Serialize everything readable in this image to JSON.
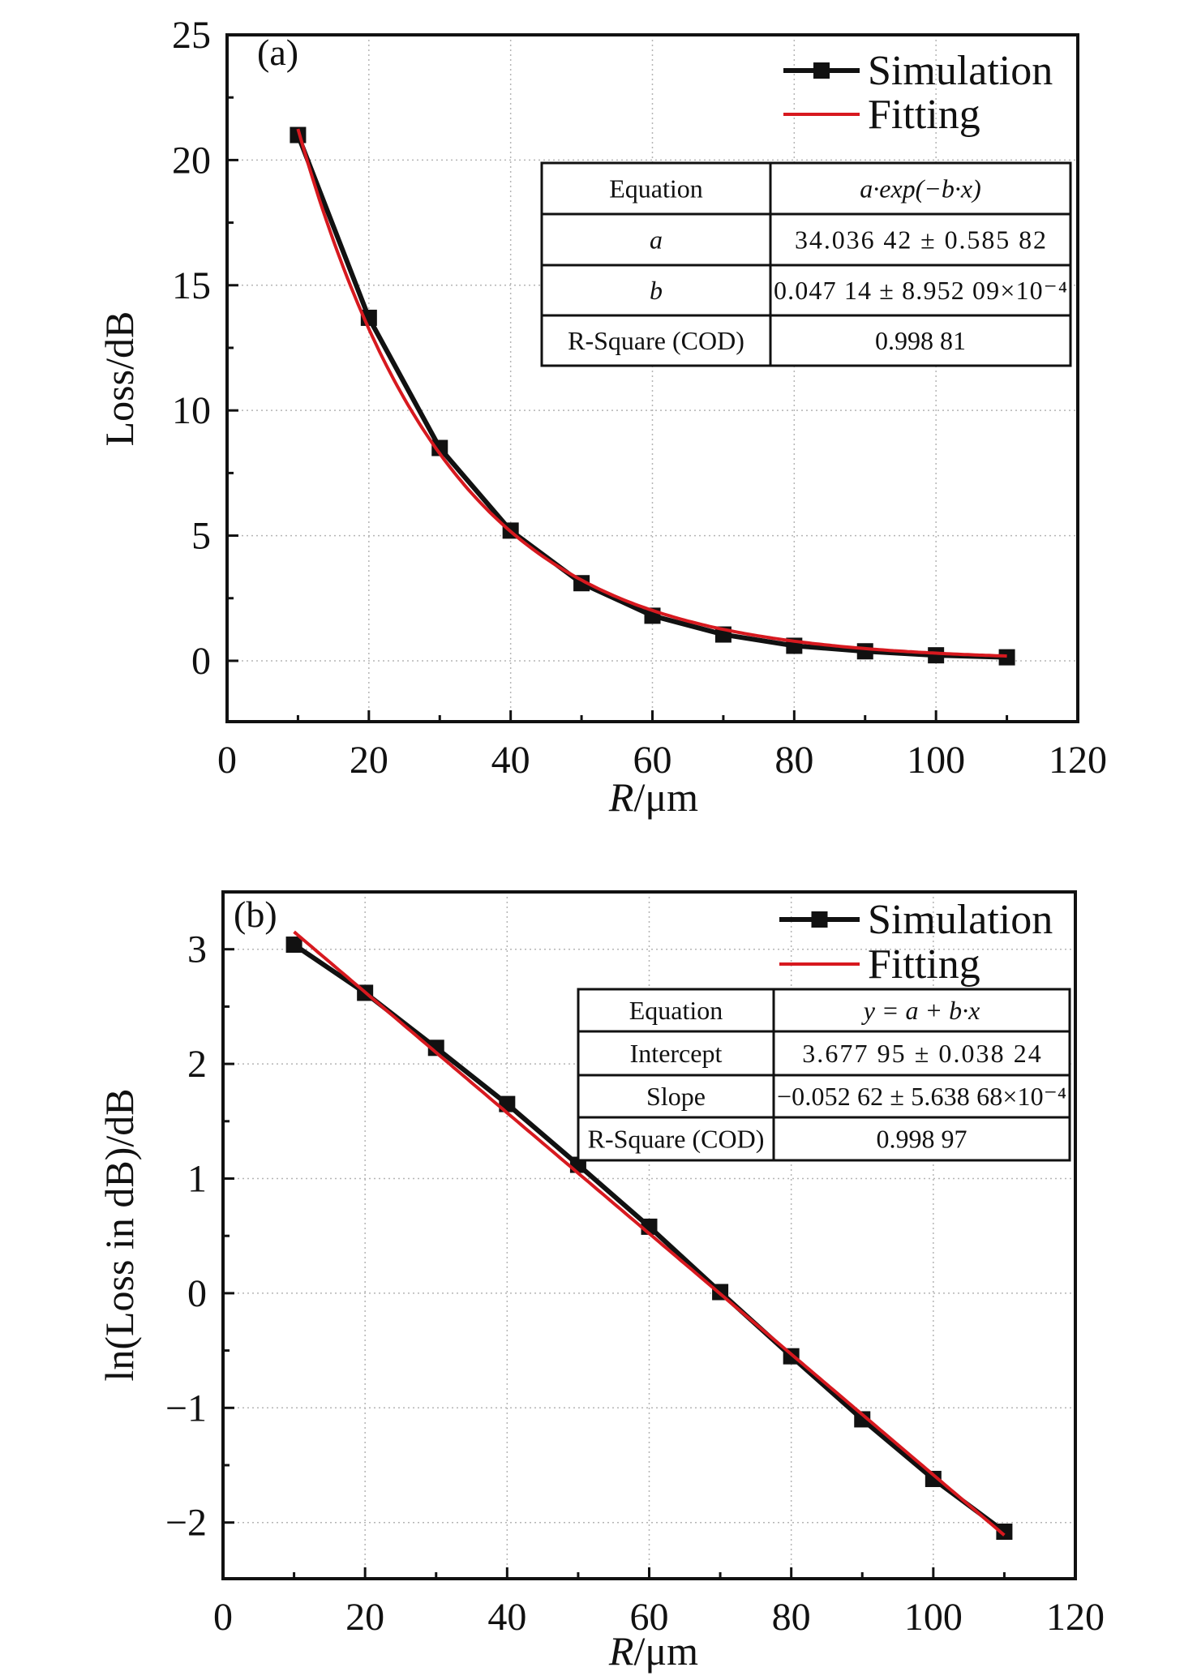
{
  "colors": {
    "simulation": "#111111",
    "fitting": "#d7191f",
    "grid": "#b5b5b5"
  },
  "chart_data": [
    {
      "type": "line",
      "panel_label": "(a)",
      "xlabel_italic": "R",
      "xlabel_unit": "/μm",
      "ylabel": "Loss/dB",
      "xlim": [
        0,
        120
      ],
      "ylim": [
        -2.43,
        25
      ],
      "xticks": [
        "0",
        "20",
        "40",
        "60",
        "80",
        "100",
        "120"
      ],
      "xtick_values": [
        0,
        20,
        40,
        60,
        80,
        100,
        120
      ],
      "yticks": [
        "0",
        "5",
        "10",
        "15",
        "20",
        "25"
      ],
      "ytick_values": [
        0,
        5,
        10,
        15,
        20,
        25
      ],
      "grid": true,
      "legend": {
        "position": "top-right",
        "entries": [
          "Simulation",
          "Fitting"
        ]
      },
      "x": [
        10,
        20,
        30,
        40,
        50,
        60,
        70,
        80,
        90,
        100,
        110
      ],
      "series": [
        {
          "name": "Simulation",
          "values": [
            21.0,
            13.7,
            8.5,
            5.2,
            3.1,
            1.8,
            1.05,
            0.6,
            0.38,
            0.22,
            0.14
          ]
        },
        {
          "name": "Fitting",
          "model": "exp",
          "a": 34.03642,
          "b": 0.04714,
          "x_range": [
            10,
            110
          ]
        }
      ],
      "table": [
        [
          "Equation",
          "a·exp(−b·x)"
        ],
        [
          "a",
          "34.036 42 ± 0.585 82"
        ],
        [
          "b",
          "0.047 14 ± 8.952 09×10⁻⁴"
        ],
        [
          "R-Square (COD)",
          "0.998 81"
        ]
      ]
    },
    {
      "type": "line",
      "panel_label": "(b)",
      "xlabel_italic": "R",
      "xlabel_unit": "/μm",
      "ylabel": "ln(Loss in dB)/dB",
      "xlim": [
        0,
        120
      ],
      "ylim": [
        -2.49,
        3.5
      ],
      "xticks": [
        "0",
        "20",
        "40",
        "60",
        "80",
        "100",
        "120"
      ],
      "xtick_values": [
        0,
        20,
        40,
        60,
        80,
        100,
        120
      ],
      "yticks": [
        "−2",
        "−1",
        "0",
        "1",
        "2",
        "3"
      ],
      "ytick_values": [
        -2,
        -1,
        0,
        1,
        2,
        3
      ],
      "grid": true,
      "legend": {
        "position": "top-right",
        "entries": [
          "Simulation",
          "Fitting"
        ]
      },
      "x": [
        10,
        20,
        30,
        40,
        50,
        60,
        70,
        80,
        90,
        100,
        110
      ],
      "series": [
        {
          "name": "Simulation",
          "values": [
            3.04,
            2.62,
            2.14,
            1.65,
            1.12,
            0.58,
            0.01,
            -0.55,
            -1.1,
            -1.62,
            -2.08
          ]
        },
        {
          "name": "Fitting",
          "model": "linear",
          "a": 3.67795,
          "b": -0.05262,
          "x_range": [
            10,
            110
          ]
        }
      ],
      "table": [
        [
          "Equation",
          "y = a + b·x"
        ],
        [
          "Intercept",
          "3.677 95 ± 0.038 24"
        ],
        [
          "Slope",
          "−0.052 62 ± 5.638 68×10⁻⁴"
        ],
        [
          "R-Square (COD)",
          "0.998 97"
        ]
      ]
    }
  ]
}
